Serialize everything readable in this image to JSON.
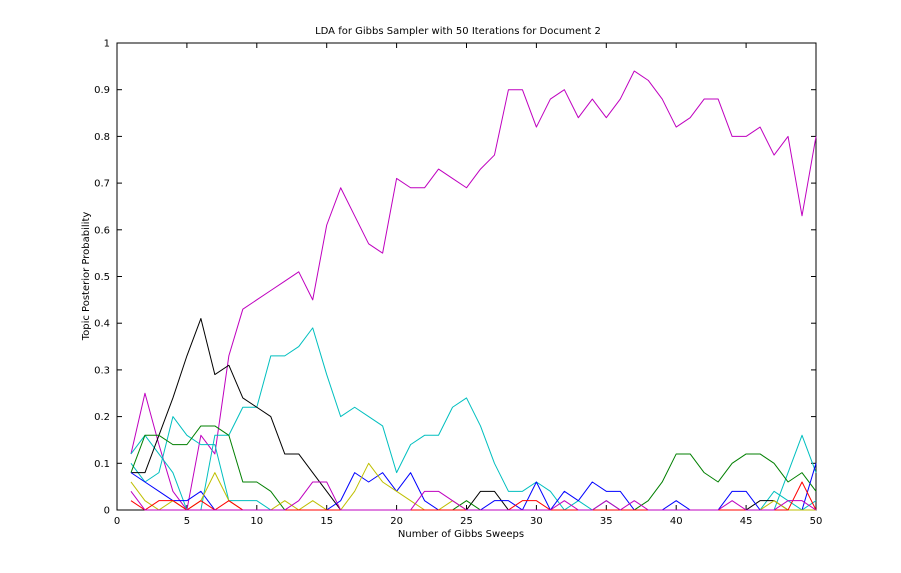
{
  "chart_data": {
    "type": "line",
    "title": "LDA for Gibbs Sampler with 50 Iterations for Document 2",
    "xlabel": "Number of Gibbs Sweeps",
    "ylabel": "Topic Posterior Probability",
    "xlim": [
      0,
      50
    ],
    "ylim": [
      0,
      1
    ],
    "xticks": [
      0,
      5,
      10,
      15,
      20,
      25,
      30,
      35,
      40,
      45,
      50
    ],
    "yticks": [
      0,
      0.1,
      0.2,
      0.3,
      0.4,
      0.5,
      0.6,
      0.7,
      0.8,
      0.9,
      1
    ],
    "grid": false,
    "legend": false,
    "x": [
      1,
      2,
      3,
      4,
      5,
      6,
      7,
      8,
      9,
      10,
      11,
      12,
      13,
      14,
      15,
      16,
      17,
      18,
      19,
      20,
      21,
      22,
      23,
      24,
      25,
      26,
      27,
      28,
      29,
      30,
      31,
      32,
      33,
      34,
      35,
      36,
      37,
      38,
      39,
      40,
      41,
      42,
      43,
      44,
      45,
      46,
      47,
      48,
      49,
      50
    ],
    "series": [
      {
        "color": "#bf00bf",
        "values": [
          0.12,
          0.25,
          0.14,
          0.04,
          0.0,
          0.16,
          0.12,
          0.33,
          0.43,
          0.45,
          0.47,
          0.49,
          0.51,
          0.45,
          0.61,
          0.69,
          0.63,
          0.57,
          0.55,
          0.71,
          0.69,
          0.69,
          0.73,
          0.71,
          0.69,
          0.73,
          0.76,
          0.9,
          0.9,
          0.82,
          0.88,
          0.9,
          0.84,
          0.88,
          0.84,
          0.88,
          0.94,
          0.92,
          0.88,
          0.82,
          0.84,
          0.88,
          0.88,
          0.8,
          0.8,
          0.82,
          0.76,
          0.8,
          0.63,
          0.8
        ]
      },
      {
        "color": "#00bfbf",
        "values": [
          0.1,
          0.06,
          0.08,
          0.2,
          0.16,
          0.14,
          0.14,
          0.02,
          0.02,
          0.02,
          0.0,
          0.0,
          0.0,
          0.0,
          0.0,
          0.0,
          0.0,
          0.0,
          0.0,
          0.0,
          0.0,
          0.0,
          0.0,
          0.0,
          0.0,
          0.0,
          0.0,
          0.0,
          0.0,
          0.0,
          0.0,
          0.0,
          0.0,
          0.0,
          0.0,
          0.0,
          0.0,
          0.0,
          0.0,
          0.0,
          0.0,
          0.0,
          0.0,
          0.0,
          0.0,
          0.0,
          0.04,
          0.02,
          0.0,
          0.02
        ]
      },
      {
        "color": "#00bfbf",
        "values": [
          0.12,
          0.16,
          0.12,
          0.08,
          0.0,
          0.0,
          0.16,
          0.16,
          0.22,
          0.22,
          0.33,
          0.33,
          0.35,
          0.39,
          0.29,
          0.2,
          0.22,
          0.2,
          0.18,
          0.08,
          0.14,
          0.16,
          0.16,
          0.22,
          0.24,
          0.18,
          0.1,
          0.04,
          0.04,
          0.06,
          0.04,
          0.0,
          0.02,
          0.0,
          0.02,
          0.0,
          0.0,
          0.0,
          0.0,
          0.0,
          0.0,
          0.0,
          0.0,
          0.0,
          0.0,
          0.0,
          0.0,
          0.08,
          0.16,
          0.08
        ]
      },
      {
        "color": "#000000",
        "values": [
          0.08,
          0.08,
          0.16,
          0.24,
          0.33,
          0.41,
          0.29,
          0.31,
          0.24,
          0.22,
          0.2,
          0.12,
          0.12,
          0.08,
          0.04,
          0.0,
          0.0,
          0.0,
          0.0,
          0.0,
          0.0,
          0.0,
          0.0,
          0.0,
          0.0,
          0.04,
          0.04,
          0.0,
          0.0,
          0.0,
          0.0,
          0.0,
          0.0,
          0.0,
          0.0,
          0.0,
          0.0,
          0.0,
          0.0,
          0.0,
          0.0,
          0.0,
          0.0,
          0.0,
          0.0,
          0.02,
          0.02,
          0.0,
          0.0,
          0.0
        ]
      },
      {
        "color": "#007f00",
        "values": [
          0.08,
          0.16,
          0.16,
          0.14,
          0.14,
          0.18,
          0.18,
          0.16,
          0.06,
          0.06,
          0.04,
          0.0,
          0.0,
          0.0,
          0.0,
          0.0,
          0.0,
          0.0,
          0.0,
          0.0,
          0.0,
          0.0,
          0.0,
          0.0,
          0.02,
          0.0,
          0.0,
          0.0,
          0.0,
          0.0,
          0.0,
          0.0,
          0.0,
          0.0,
          0.0,
          0.0,
          0.0,
          0.02,
          0.06,
          0.12,
          0.12,
          0.08,
          0.06,
          0.1,
          0.12,
          0.12,
          0.1,
          0.06,
          0.08,
          0.04
        ]
      },
      {
        "color": "#0000ff",
        "values": [
          0.08,
          0.06,
          0.04,
          0.02,
          0.02,
          0.04,
          0.0,
          0.0,
          0.0,
          0.0,
          0.0,
          0.0,
          0.0,
          0.0,
          0.0,
          0.02,
          0.08,
          0.06,
          0.08,
          0.04,
          0.08,
          0.02,
          0.0,
          0.0,
          0.0,
          0.0,
          0.02,
          0.02,
          0.0,
          0.06,
          0.0,
          0.04,
          0.02,
          0.06,
          0.04,
          0.04,
          0.0,
          0.0,
          0.0,
          0.02,
          0.0,
          0.0,
          0.0,
          0.04,
          0.04,
          0.0,
          0.0,
          0.0,
          0.0,
          0.1
        ]
      },
      {
        "color": "#bfbf00",
        "values": [
          0.06,
          0.02,
          0.0,
          0.02,
          0.0,
          0.02,
          0.08,
          0.02,
          0.0,
          0.0,
          0.0,
          0.02,
          0.0,
          0.02,
          0.0,
          0.0,
          0.04,
          0.1,
          0.06,
          0.04,
          0.02,
          0.0,
          0.0,
          0.02,
          0.0,
          0.0,
          0.0,
          0.0,
          0.0,
          0.0,
          0.0,
          0.0,
          0.0,
          0.0,
          0.0,
          0.0,
          0.0,
          0.0,
          0.0,
          0.0,
          0.0,
          0.0,
          0.0,
          0.0,
          0.0,
          0.0,
          0.02,
          0.0,
          0.0,
          0.0
        ]
      },
      {
        "color": "#ff0000",
        "values": [
          0.02,
          0.0,
          0.02,
          0.02,
          0.0,
          0.02,
          0.0,
          0.02,
          0.0,
          0.0,
          0.0,
          0.0,
          0.0,
          0.0,
          0.0,
          0.0,
          0.0,
          0.0,
          0.0,
          0.0,
          0.0,
          0.0,
          0.0,
          0.0,
          0.0,
          0.0,
          0.0,
          0.0,
          0.02,
          0.02,
          0.0,
          0.0,
          0.0,
          0.0,
          0.0,
          0.0,
          0.0,
          0.0,
          0.0,
          0.0,
          0.0,
          0.0,
          0.0,
          0.0,
          0.0,
          0.0,
          0.0,
          0.0,
          0.06,
          0.0
        ]
      },
      {
        "color": "#bf00bf",
        "values": [
          0.04,
          0.0,
          0.0,
          0.0,
          0.0,
          0.0,
          0.0,
          0.0,
          0.0,
          0.0,
          0.0,
          0.0,
          0.02,
          0.06,
          0.06,
          0.0,
          0.0,
          0.0,
          0.0,
          0.0,
          0.0,
          0.04,
          0.04,
          0.02,
          0.0,
          0.0,
          0.0,
          0.0,
          0.0,
          0.0,
          0.0,
          0.02,
          0.0,
          0.0,
          0.02,
          0.0,
          0.02,
          0.0,
          0.0,
          0.0,
          0.0,
          0.0,
          0.0,
          0.02,
          0.0,
          0.0,
          0.0,
          0.02,
          0.02,
          0.0
        ]
      }
    ]
  }
}
